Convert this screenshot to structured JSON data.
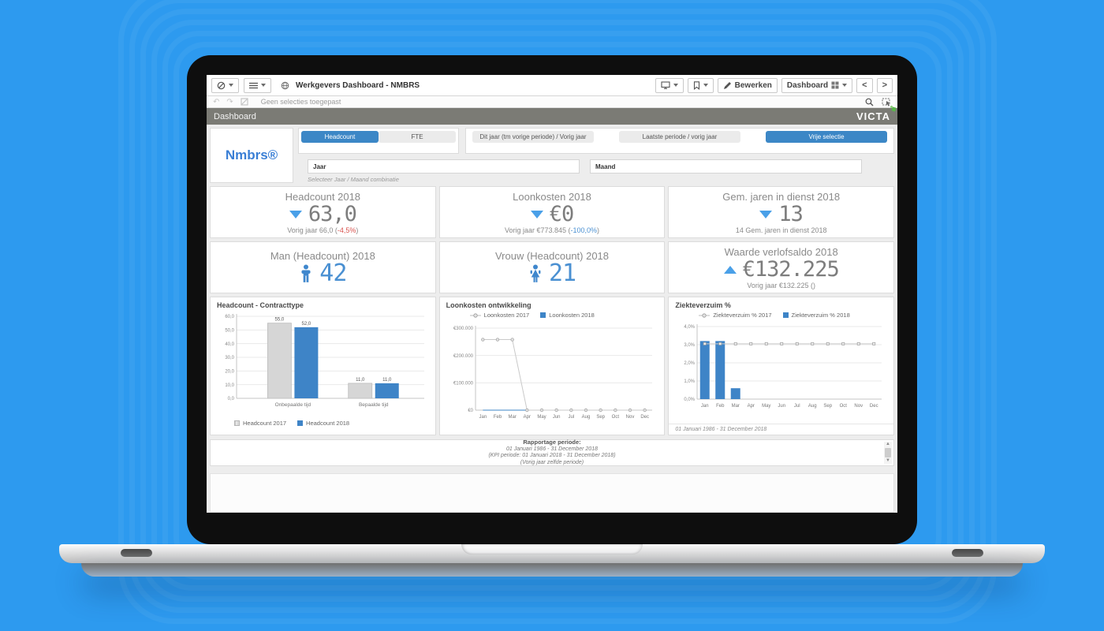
{
  "colors": {
    "background_blue": "#2d9aef",
    "accent_blue": "#3c87c6",
    "kpi_blue": "#4a90d2",
    "kpi_gray": "#7d7d7d",
    "negative_red": "#d9534f",
    "bar_2017_gray": "#d6d6d6",
    "bar_2018_blue": "#3e84c7",
    "titlebar_gray": "#7b7b75"
  },
  "browser": {
    "app_title": "Werkgevers Dashboard - NMBRS",
    "bewerken_label": "Bewerken",
    "sheet_name": "Dashboard",
    "prev_arrow": "<",
    "next_arrow": ">",
    "selection_message": "Geen selecties toegepast"
  },
  "titlebar": {
    "title": "Dashboard",
    "brand": "VICTA"
  },
  "filters": {
    "logo": "Nmbrs®",
    "measure_buttons": [
      {
        "label": "Headcount",
        "active": true
      },
      {
        "label": "FTE",
        "active": false
      }
    ],
    "period_buttons": [
      {
        "label": "Dit jaar (tm vorige periode) / Vorig jaar",
        "active": false
      },
      {
        "label": "Laatste periode / vorig jaar",
        "active": false
      },
      {
        "label": "Vrije selectie",
        "active": true
      }
    ],
    "jaar_label": "Jaar",
    "maand_label": "Maand",
    "hint": "Selecteer Jaar / Maand combinatie"
  },
  "kpis": [
    {
      "title": "Headcount 2018",
      "indicator": "triangle-down",
      "value": "63,0",
      "sub": {
        "prefix": "Vorig jaar 66,0 (",
        "delta": "-4,5%",
        "suffix": ")",
        "delta_color": "#d9534f"
      }
    },
    {
      "title": "Loonkosten 2018",
      "indicator": "triangle-down",
      "value": "€0",
      "sub": {
        "prefix": "Vorig jaar €773.845 (",
        "delta": "-100,0%",
        "suffix": ")",
        "delta_color": "#4a90d2"
      }
    },
    {
      "title": "Gem. jaren in dienst 2018",
      "indicator": "triangle-down",
      "value": "13",
      "sub": {
        "prefix": "14 Gem. jaren in dienst 2018",
        "delta": "",
        "suffix": "",
        "delta_color": ""
      }
    },
    {
      "title": "Man (Headcount) 2018",
      "indicator": "male",
      "value": "42",
      "value_color": "#4a90d2"
    },
    {
      "title": "Vrouw (Headcount) 2018",
      "indicator": "female",
      "value": "21",
      "value_color": "#4a90d2"
    },
    {
      "title": "Waarde verlofsaldo 2018",
      "indicator": "triangle-up",
      "value": "€132.225",
      "sub": {
        "prefix": "Vorig jaar €132.225 ()",
        "delta": "",
        "suffix": "",
        "delta_color": ""
      }
    }
  ],
  "chart_data": [
    {
      "type": "bar",
      "title": "Headcount - Contracttype",
      "categories": [
        "Onbepaalde tijd",
        "Bepaalde tijd"
      ],
      "series": [
        {
          "name": "Headcount 2017",
          "color": "#d6d6d6",
          "stroke": "#bdbdbd",
          "values": [
            55.0,
            11.0
          ],
          "labels": [
            "55,0",
            "11,0"
          ]
        },
        {
          "name": "Headcount 2018",
          "color": "#3e84c7",
          "stroke": "none",
          "values": [
            52.0,
            11.0
          ],
          "labels": [
            "52,0",
            "11,0"
          ]
        }
      ],
      "ylim": [
        0,
        60
      ],
      "yticks": [
        {
          "v": 0,
          "label": "0,0"
        },
        {
          "v": 10,
          "label": "10,0"
        },
        {
          "v": 20,
          "label": "20,0"
        },
        {
          "v": 30,
          "label": "30,0"
        },
        {
          "v": 40,
          "label": "40,0"
        },
        {
          "v": 50,
          "label": "50,0"
        },
        {
          "v": 60,
          "label": "60,0"
        }
      ],
      "legend_position": "bottom",
      "grid": true
    },
    {
      "type": "line",
      "title": "Loonkosten ontwikkeling",
      "x": [
        "Jan",
        "Feb",
        "Mar",
        "Apr",
        "May",
        "Jun",
        "Jul",
        "Aug",
        "Sep",
        "Oct",
        "Nov",
        "Dec"
      ],
      "series": [
        {
          "name": "Loonkosten 2017",
          "color": "#c9c9c9",
          "values": [
            258000,
            258000,
            258000,
            0,
            0,
            0,
            0,
            0,
            0,
            0,
            0,
            0
          ]
        },
        {
          "name": "Loonkosten 2018",
          "color": "#3e84c7",
          "values": [
            0,
            0,
            0,
            0,
            0,
            0,
            0,
            0,
            0,
            0,
            0,
            0
          ]
        }
      ],
      "ylim": [
        0,
        300000
      ],
      "yticks": [
        {
          "v": 0,
          "label": "€0"
        },
        {
          "v": 100000,
          "label": "€100.000"
        },
        {
          "v": 200000,
          "label": "€200.000"
        },
        {
          "v": 300000,
          "label": "€300.000"
        }
      ],
      "legend_position": "top",
      "grid": true
    },
    {
      "type": "bar+line",
      "title": "Ziekteverzuim %",
      "x": [
        "Jan",
        "Feb",
        "Mar",
        "Apr",
        "May",
        "Jun",
        "Jul",
        "Aug",
        "Sep",
        "Oct",
        "Nov",
        "Dec"
      ],
      "bar_series": {
        "name": "Ziekteverzuim % 2018",
        "color": "#3e84c7",
        "values": [
          3.2,
          3.2,
          0.6,
          0,
          0,
          0,
          0,
          0,
          0,
          0,
          0,
          0
        ]
      },
      "line_series": {
        "name": "Ziekteverzuim % 2017",
        "color": "#c9c9c9",
        "values": [
          3.05,
          3.05,
          3.05,
          3.05,
          3.05,
          3.05,
          3.05,
          3.05,
          3.05,
          3.05,
          3.05,
          3.05
        ]
      },
      "ylim": [
        0,
        4
      ],
      "yticks": [
        {
          "v": 0,
          "label": "0,0%"
        },
        {
          "v": 1,
          "label": "1,0%"
        },
        {
          "v": 2,
          "label": "2,0%"
        },
        {
          "v": 3,
          "label": "3,0%"
        },
        {
          "v": 4,
          "label": "4,0%"
        }
      ],
      "footnote": "01 Januari 1986 - 31 December 2018",
      "legend_position": "top",
      "grid": true
    }
  ],
  "footer": {
    "heading": "Rapportage periode:",
    "lines": [
      "01 Januari 1986 - 31 December 2018",
      "(KPI periode: 01 Januari 2018 - 31 December 2018)",
      "(Vorig jaar zelfde periode)"
    ]
  }
}
